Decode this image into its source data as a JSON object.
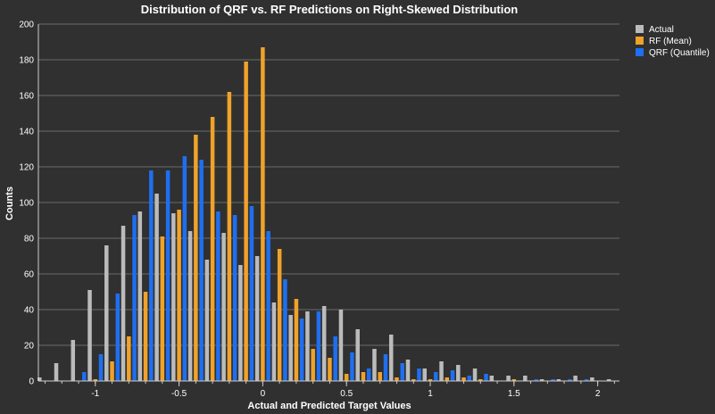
{
  "chart_data": {
    "type": "bar",
    "title": "Distribution of QRF vs. RF Predictions on Right-Skewed Distribution",
    "xlabel": "Actual and Predicted Target Values",
    "ylabel": "Counts",
    "xlim": [
      -1.34,
      2.13
    ],
    "ylim": [
      0,
      200
    ],
    "grid": true,
    "legend_position": "top-right",
    "x_ticks": [
      -1,
      -0.5,
      0,
      0.5,
      1,
      1.5,
      2
    ],
    "x_tick_labels": [
      "-1",
      "-0.5",
      "0",
      "0.5",
      "1",
      "1.5",
      "2"
    ],
    "y_ticks": [
      0,
      20,
      40,
      60,
      80,
      100,
      120,
      140,
      160,
      180,
      200
    ],
    "y_tick_labels": [
      "0",
      "20",
      "40",
      "60",
      "80",
      "100",
      "120",
      "140",
      "160",
      "180",
      "200"
    ],
    "bin_width": 0.1,
    "series": [
      {
        "name": "Actual",
        "color": "#bbbbbb",
        "x": [
          -1.3,
          -1.2,
          -1.1,
          -1.0,
          -0.9,
          -0.8,
          -0.7,
          -0.6,
          -0.5,
          -0.4,
          -0.3,
          -0.2,
          -0.1,
          0.0,
          0.1,
          0.2,
          0.3,
          0.4,
          0.5,
          0.6,
          0.7,
          0.8,
          0.9,
          1.0,
          1.1,
          1.2,
          1.3,
          1.4,
          1.5,
          1.6,
          1.7,
          1.8,
          1.9,
          2.0,
          2.1
        ],
        "values": [
          2,
          10,
          23,
          51,
          76,
          87,
          95,
          105,
          94,
          84,
          68,
          83,
          65,
          70,
          44,
          37,
          39,
          42,
          40,
          29,
          18,
          26,
          12,
          7,
          11,
          9,
          7,
          3,
          3,
          3,
          1,
          1,
          3,
          2,
          1
        ]
      },
      {
        "name": "RF (Mean)",
        "color": "#f0a22a",
        "x": [
          -1.0,
          -0.9,
          -0.8,
          -0.7,
          -0.6,
          -0.5,
          -0.4,
          -0.3,
          -0.2,
          -0.1,
          0.0,
          0.1,
          0.2,
          0.3,
          0.4,
          0.5,
          0.6,
          0.7,
          0.8,
          0.9,
          1.0,
          1.1,
          1.2,
          1.3,
          1.4,
          1.5,
          1.6,
          1.7,
          1.8
        ],
        "values": [
          1,
          11,
          25,
          50,
          81,
          96,
          138,
          148,
          162,
          179,
          187,
          74,
          46,
          18,
          13,
          4,
          5,
          5,
          2,
          1,
          1,
          2,
          2,
          1,
          0,
          1,
          0,
          0,
          0
        ]
      },
      {
        "name": "QRF (Quantile)",
        "color": "#1f6ff0",
        "x": [
          -1.1,
          -1.0,
          -0.9,
          -0.8,
          -0.7,
          -0.6,
          -0.5,
          -0.4,
          -0.3,
          -0.2,
          -0.1,
          0.0,
          0.1,
          0.2,
          0.3,
          0.4,
          0.5,
          0.6,
          0.7,
          0.8,
          0.9,
          1.0,
          1.1,
          1.2,
          1.3,
          1.4,
          1.5,
          1.6,
          1.7,
          1.8,
          1.9
        ],
        "values": [
          5,
          15,
          49,
          93,
          118,
          118,
          126,
          124,
          95,
          93,
          98,
          84,
          57,
          35,
          39,
          25,
          16,
          7,
          15,
          10,
          7,
          5,
          6,
          3,
          4,
          0,
          0,
          1,
          1,
          1,
          1
        ]
      }
    ]
  }
}
